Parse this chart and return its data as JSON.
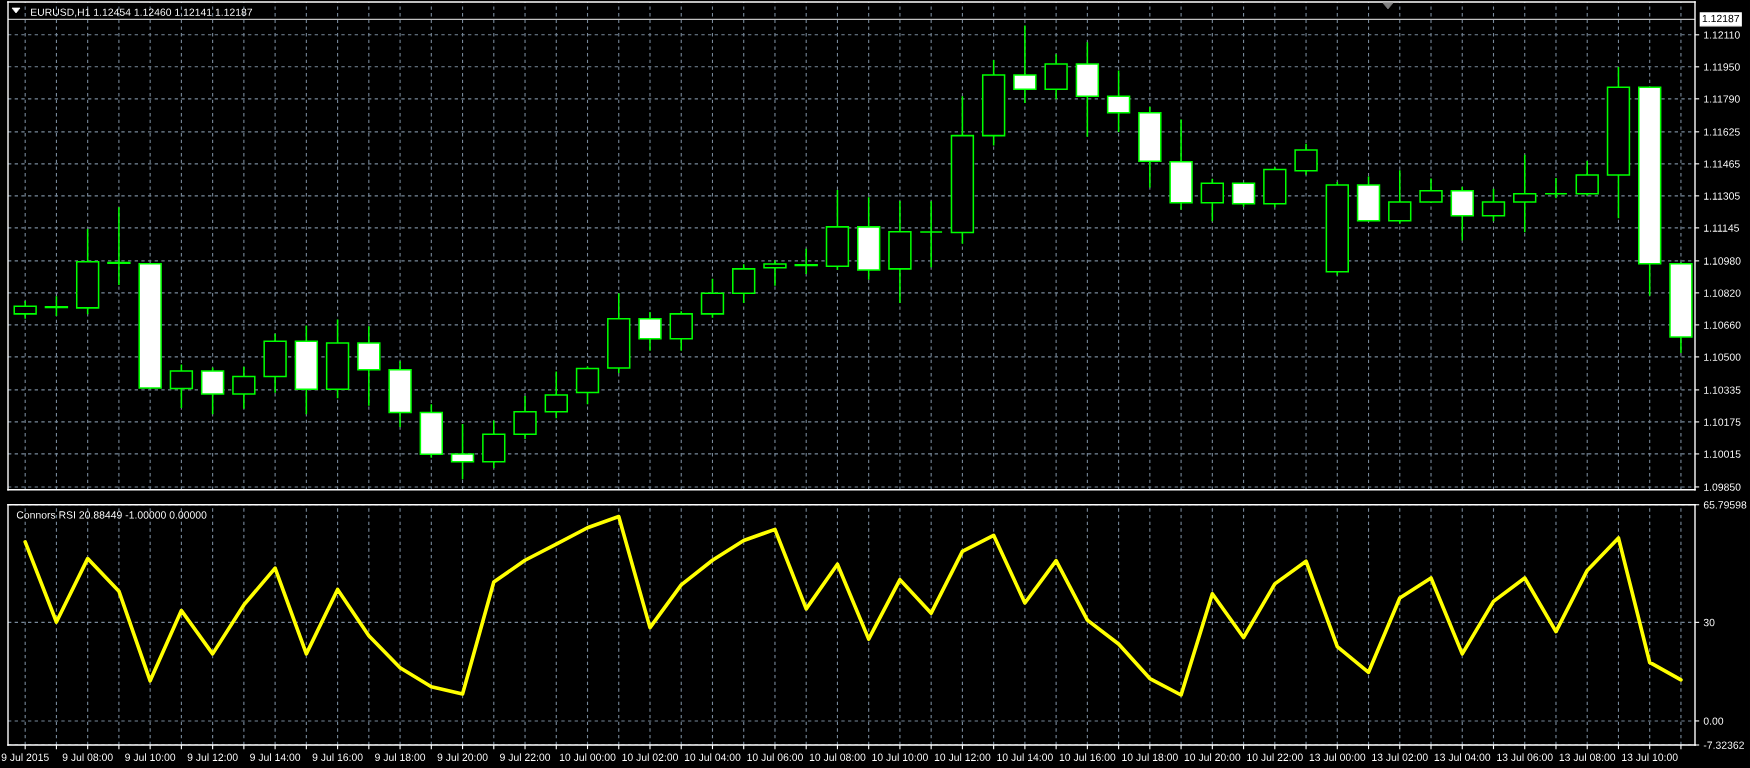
{
  "chart_data": [
    {
      "type": "candlestick",
      "title": "EURUSD,H1 1.12454 1.12460 1.12141 1.12187",
      "categories": [
        null,
        null,
        null,
        null,
        null,
        null,
        null,
        null,
        null,
        null,
        null,
        null,
        null,
        null,
        null,
        null,
        null,
        null,
        null,
        null,
        null,
        null,
        null,
        null,
        null,
        null,
        null,
        null,
        null,
        null,
        null,
        null,
        null,
        null,
        null,
        null,
        null,
        null,
        null,
        null,
        null,
        null,
        null,
        null,
        null,
        null,
        null,
        null,
        null,
        null,
        null,
        null,
        null,
        null
      ],
      "ohlc": [
        [
          1.10715,
          1.10779,
          1.10691,
          1.10753
        ],
        [
          1.10751,
          1.10803,
          1.10704,
          1.10747
        ],
        [
          1.10745,
          1.11139,
          1.10713,
          1.10976
        ],
        [
          1.10972,
          1.11248,
          1.10859,
          1.10968
        ],
        [
          1.10966,
          1.10968,
          1.1034,
          1.10344
        ],
        [
          1.10342,
          1.10462,
          1.10244,
          1.1043
        ],
        [
          1.1043,
          1.10447,
          1.10213,
          1.10314
        ],
        [
          1.10314,
          1.10451,
          1.10241,
          1.10402
        ],
        [
          1.10402,
          1.10616,
          1.10321,
          1.10578
        ],
        [
          1.10578,
          1.10657,
          1.10213,
          1.10338
        ],
        [
          1.10338,
          1.10687,
          1.10293,
          1.10569
        ],
        [
          1.10569,
          1.10653,
          1.10256,
          1.10436
        ],
        [
          1.10436,
          1.10478,
          1.1015,
          1.10222
        ],
        [
          1.10222,
          1.10263,
          1.09996,
          1.10013
        ],
        [
          1.10015,
          1.10165,
          1.09888,
          1.09976
        ],
        [
          1.09976,
          1.10182,
          1.09945,
          1.10113
        ],
        [
          1.10113,
          1.10305,
          1.10089,
          1.10226
        ],
        [
          1.10226,
          1.10427,
          1.10193,
          1.1031
        ],
        [
          1.10322,
          1.10452,
          1.10263,
          1.10442
        ],
        [
          1.10445,
          1.10818,
          1.10419,
          1.10691
        ],
        [
          1.10691,
          1.10724,
          1.10531,
          1.10591
        ],
        [
          1.10591,
          1.10728,
          1.10531,
          1.10715
        ],
        [
          1.10715,
          1.10891,
          1.10696,
          1.10818
        ],
        [
          1.10818,
          1.10963,
          1.10769,
          1.1094
        ],
        [
          1.10946,
          1.10983,
          1.10856,
          1.10964
        ],
        [
          1.10961,
          1.11041,
          1.10914,
          1.10957
        ],
        [
          1.10953,
          1.11334,
          1.10934,
          1.1115
        ],
        [
          1.1115,
          1.11298,
          1.10886,
          1.10934
        ],
        [
          1.1094,
          1.11279,
          1.10769,
          1.11126
        ],
        [
          1.11124,
          1.11278,
          1.10948,
          1.11124
        ],
        [
          1.11122,
          1.11803,
          1.11066,
          1.11606
        ],
        [
          1.11606,
          1.11984,
          1.11557,
          1.11909
        ],
        [
          1.11909,
          1.12157,
          1.11769,
          1.11838
        ],
        [
          1.11838,
          1.12013,
          1.11788,
          1.11964
        ],
        [
          1.11964,
          1.12073,
          1.116,
          1.11803
        ],
        [
          1.11803,
          1.11932,
          1.11624,
          1.1172
        ],
        [
          1.1172,
          1.1175,
          1.11347,
          1.11478
        ],
        [
          1.11475,
          1.11687,
          1.11235,
          1.11271
        ],
        [
          1.11271,
          1.1139,
          1.11178,
          1.11368
        ],
        [
          1.11368,
          1.1137,
          1.1125,
          1.11265
        ],
        [
          1.11265,
          1.11448,
          1.11248,
          1.11437
        ],
        [
          1.11431,
          1.11566,
          1.11411,
          1.11534
        ],
        [
          1.10926,
          1.11374,
          1.10907,
          1.11359
        ],
        [
          1.11359,
          1.11402,
          1.11178,
          1.1118
        ],
        [
          1.1118,
          1.11433,
          1.11165,
          1.11274
        ],
        [
          1.11274,
          1.11392,
          1.1127,
          1.1133
        ],
        [
          1.1133,
          1.1135,
          1.11082,
          1.11206
        ],
        [
          1.11206,
          1.11341,
          1.11178,
          1.11274
        ],
        [
          1.11274,
          1.1151,
          1.11123,
          1.11315
        ],
        [
          1.11315,
          1.11394,
          1.11293,
          1.11315
        ],
        [
          1.11315,
          1.11479,
          1.11305,
          1.11409
        ],
        [
          1.11409,
          1.11949,
          1.11193,
          1.11848
        ],
        [
          1.11848,
          1.1185,
          1.10806,
          1.10966
        ],
        [
          1.10966,
          1.10972,
          1.1052,
          1.10599
        ]
      ],
      "color": "#00ff00",
      "colors": [
        "#000000",
        "#ffffff",
        "#000000",
        "#ffffff",
        "#ffffff",
        "#000000",
        "#ffffff",
        "#000000",
        "#000000",
        "#ffffff",
        "#000000",
        "#ffffff",
        "#ffffff",
        "#ffffff",
        "#ffffff",
        "#000000",
        "#000000",
        "#000000",
        "#000000",
        "#000000",
        "#ffffff",
        "#000000",
        "#000000",
        "#000000",
        "#000000",
        "#ffffff",
        "#000000",
        "#ffffff",
        "#000000",
        "#00ff00",
        "#000000",
        "#000000",
        "#ffffff",
        "#000000",
        "#ffffff",
        "#ffffff",
        "#ffffff",
        "#ffffff",
        "#000000",
        "#ffffff",
        "#000000",
        "#000000",
        "#000000",
        "#ffffff",
        "#000000",
        "#000000",
        "#ffffff",
        "#000000",
        "#000000",
        "#00ff00",
        "#000000",
        "#000000",
        "#ffffff",
        "#ffffff"
      ],
      "ylim": [
        1.09836,
        1.12274
      ],
      "yticks": [
        {
          "value": 1.1211,
          "label": "1.12110"
        },
        {
          "value": 1.1195,
          "label": "1.11950"
        },
        {
          "value": 1.1179,
          "label": "1.11790"
        },
        1.11625,
        1.11465,
        1.11305,
        1.11145,
        {
          "value": 1.1098,
          "label": "1.10980"
        },
        {
          "value": 1.1082,
          "label": "1.10820"
        },
        {
          "value": 1.1066,
          "label": "1.10660"
        },
        {
          "value": 1.105,
          "label": "1.10500"
        },
        1.10335,
        1.10175,
        1.10015,
        {
          "value": 1.0985,
          "label": "1.09850"
        }
      ],
      "grid": true,
      "tick_labels": "y",
      "ref_lines": [
        {
          "axis": "y",
          "value": 1.12187,
          "label": "1.12187",
          "color": "#c0c0c0"
        }
      ]
    },
    {
      "type": "line",
      "title": "Connors RSI 20.88449 -1.00000 0.00000",
      "categories": [
        "9 Jul 2015",
        null,
        "9 Jul 08:00",
        null,
        "9 Jul 10:00",
        null,
        "9 Jul 12:00",
        null,
        "9 Jul 14:00",
        null,
        "9 Jul 16:00",
        null,
        "9 Jul 18:00",
        null,
        "9 Jul 20:00",
        null,
        "9 Jul 22:00",
        null,
        "10 Jul 00:00",
        null,
        "10 Jul 02:00",
        null,
        "10 Jul 04:00",
        null,
        "10 Jul 06:00",
        null,
        "10 Jul 08:00",
        null,
        "10 Jul 10:00",
        null,
        "10 Jul 12:00",
        null,
        "10 Jul 14:00",
        null,
        "10 Jul 16:00",
        null,
        "10 Jul 18:00",
        null,
        "10 Jul 20:00",
        null,
        "10 Jul 22:00",
        null,
        "13 Jul 00:00",
        null,
        "13 Jul 02:00",
        null,
        "13 Jul 04:00",
        null,
        "13 Jul 06:00",
        null,
        "13 Jul 08:00",
        null,
        "13 Jul 10:00",
        null
      ],
      "series": [
        {
          "color": "#ffff00",
          "values": [
            54.5,
            30.1,
            49.4,
            39.5,
            12.2,
            33.6,
            20.4,
            35.3,
            46.5,
            20.4,
            40.0,
            25.9,
            16.2,
            10.4,
            8.2,
            42.3,
            48.9,
            53.8,
            58.8,
            62.2,
            28.4,
            41.4,
            48.9,
            54.9,
            58.3,
            34.1,
            47.7,
            24.9,
            43.0,
            32.8,
            51.6,
            56.5,
            35.9,
            48.8,
            30.7,
            23.4,
            12.9,
            7.9,
            38.7,
            25.4,
            41.7,
            48.6,
            22.6,
            14.8,
            37.4,
            43.5,
            20.4,
            36.4,
            43.5,
            27.2,
            45.8,
            55.7,
            17.8,
            12.5
          ]
        }
      ],
      "ylim": [
        -7.32362,
        65.79598
      ],
      "yticks": [
        65.79598,
        30,
        {
          "value": 0,
          "label": "0.00"
        },
        -7.32362
      ],
      "grid": true
    }
  ]
}
